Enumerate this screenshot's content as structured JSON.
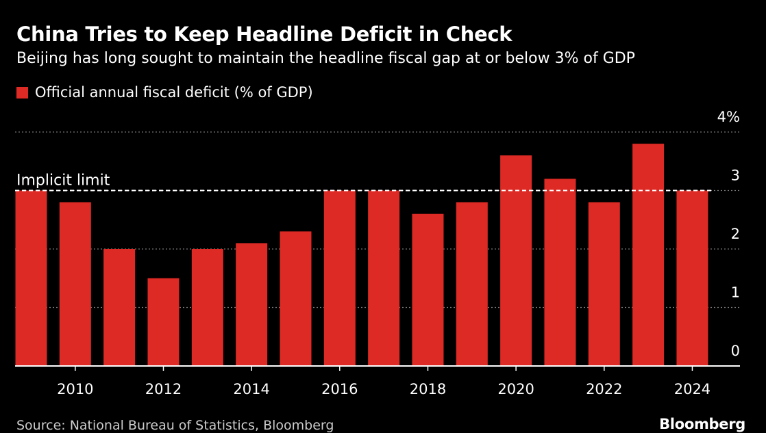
{
  "header": {
    "title": "China Tries to Keep Headline Deficit in Check",
    "subtitle": "Beijing has long sought to maintain the headline fiscal gap at or below 3% of GDP"
  },
  "footer": {
    "source": "Source: National Bureau of Statistics, Bloomberg",
    "brand": "Bloomberg"
  },
  "colors": {
    "bar": "#dd2a24",
    "background": "#000000",
    "gridline": "#777777",
    "limit_line": "#ffffff"
  },
  "chart_data": {
    "type": "bar",
    "legend": {
      "label": "Official annual fiscal deficit (% of GDP)",
      "placement": "top-left"
    },
    "x": [
      2009,
      2010,
      2011,
      2012,
      2013,
      2014,
      2015,
      2016,
      2017,
      2018,
      2019,
      2020,
      2021,
      2022,
      2023,
      2024
    ],
    "series": [
      {
        "name": "Official annual fiscal deficit (% of GDP)",
        "values": [
          3.0,
          2.8,
          2.0,
          1.5,
          2.0,
          2.1,
          2.3,
          3.0,
          3.0,
          2.6,
          2.8,
          3.6,
          3.2,
          2.8,
          3.8,
          3.0
        ]
      }
    ],
    "xticks": [
      2010,
      2012,
      2014,
      2016,
      2018,
      2020,
      2022,
      2024
    ],
    "yticks": [
      0,
      1,
      2,
      3,
      4
    ],
    "ytick_labels": [
      "0",
      "1",
      "2",
      "3",
      "4%"
    ],
    "ylim": [
      0,
      4
    ],
    "y_axis_side": "right",
    "grid": true,
    "annotations": [
      {
        "type": "reference_line",
        "y": 3,
        "label": "Implicit limit",
        "style": "dashed"
      }
    ]
  }
}
